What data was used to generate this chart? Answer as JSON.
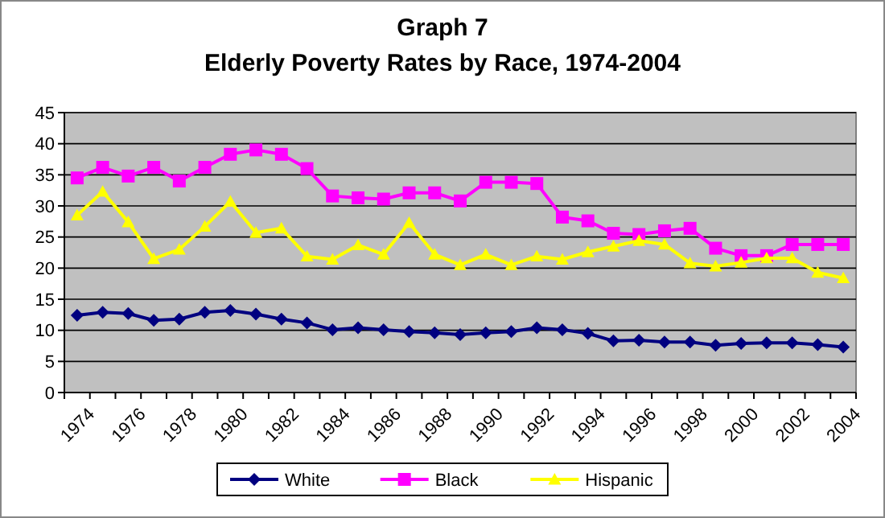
{
  "chart_data": {
    "type": "line",
    "title": "Graph 7",
    "subtitle": "Elderly Poverty Rates by Race, 1974-2004",
    "categories": [
      "1974",
      null,
      "1976",
      null,
      "1978",
      null,
      "1980",
      null,
      "1982",
      null,
      "1984",
      null,
      "1986",
      null,
      "1988",
      null,
      "1990",
      null,
      "1992",
      null,
      "1994",
      null,
      "1996",
      null,
      "1998",
      null,
      "2000",
      null,
      "2002",
      null,
      "2004"
    ],
    "series": [
      {
        "name": "White",
        "color": "#000080",
        "marker": "diamond",
        "values": [
          12.4,
          12.9,
          12.7,
          11.6,
          11.8,
          12.9,
          13.2,
          12.6,
          11.8,
          11.2,
          10.1,
          10.4,
          10.1,
          9.8,
          9.6,
          9.3,
          9.6,
          9.8,
          10.4,
          10.1,
          9.5,
          8.3,
          8.4,
          8.1,
          8.1,
          7.6,
          7.9,
          8.0,
          8.0,
          7.7,
          7.3
        ]
      },
      {
        "name": "Black",
        "color": "#ff00ff",
        "marker": "square",
        "values": [
          34.5,
          36.2,
          34.8,
          36.2,
          34.0,
          36.2,
          38.3,
          39.0,
          38.3,
          36.0,
          31.6,
          31.3,
          31.1,
          32.1,
          32.1,
          30.8,
          33.8,
          33.8,
          33.6,
          28.2,
          27.6,
          25.6,
          25.4,
          26.0,
          26.4,
          23.2,
          22.0,
          22.0,
          23.8,
          23.8,
          23.8
        ]
      },
      {
        "name": "Hispanic",
        "color": "#ffff00",
        "marker": "triangle",
        "values": [
          28.5,
          32.3,
          27.4,
          21.5,
          23.0,
          26.7,
          30.7,
          25.7,
          26.4,
          21.9,
          21.4,
          23.7,
          22.2,
          27.3,
          22.2,
          20.5,
          22.2,
          20.5,
          21.9,
          21.4,
          22.6,
          23.5,
          24.4,
          23.8,
          20.8,
          20.3,
          20.9,
          21.6,
          21.6,
          19.3,
          18.4
        ]
      }
    ],
    "ylim": [
      0,
      45
    ],
    "yticks": [
      0,
      5,
      10,
      15,
      20,
      25,
      30,
      35,
      40,
      45
    ],
    "grid": "y",
    "legend": "bottom"
  }
}
